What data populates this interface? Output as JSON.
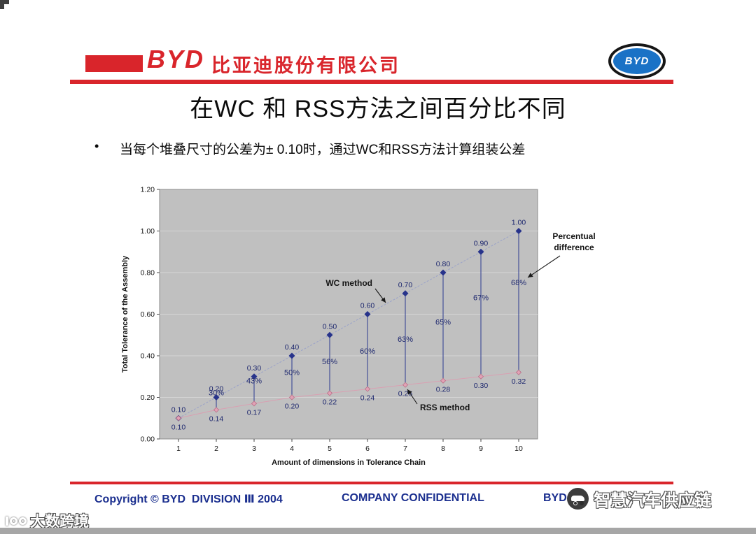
{
  "header": {
    "logo_text": "BYD",
    "company_name": "比亚迪股份有限公司",
    "badge_text": "BYD"
  },
  "title": "在WC 和 RSS方法之间百分比不同",
  "bullet_marker": "•",
  "bullet": "当每个堆叠尺寸的公差为± 0.10时，通过WC和RSS方法计算组装公差",
  "chart_data": {
    "type": "line",
    "x": [
      1,
      2,
      3,
      4,
      5,
      6,
      7,
      8,
      9,
      10
    ],
    "xlabel": "Amount of dimensions in Tolerance Chain",
    "ylabel": "Total Tolerance of the Assembly",
    "ylim": [
      0,
      1.2
    ],
    "ytick_step": 0.2,
    "plot_bg": "#c0c0c0",
    "grid": "horizontal",
    "legend": "none",
    "series": [
      {
        "name": "WC method",
        "color": "#27338b",
        "marker": "diamond",
        "values": [
          0.1,
          0.2,
          0.3,
          0.4,
          0.5,
          0.6,
          0.7,
          0.8,
          0.9,
          1.0
        ],
        "labels": [
          "0.10",
          "0.20",
          "0.30",
          "0.40",
          "0.50",
          "0.60",
          "0.70",
          "0.80",
          "0.90",
          "1.00"
        ]
      },
      {
        "name": "RSS method",
        "color": "#e2a2b5",
        "marker": "diamond",
        "values": [
          0.1,
          0.14,
          0.17,
          0.2,
          0.22,
          0.24,
          0.26,
          0.28,
          0.3,
          0.32
        ],
        "labels": [
          "0.10",
          "0.14",
          "0.17",
          "0.20",
          "0.22",
          "0.24",
          "0.26",
          "0.28",
          "0.30",
          "0.32"
        ]
      }
    ],
    "percent_labels": [
      {
        "n": 2,
        "v": 0.21,
        "text": "30%"
      },
      {
        "n": 3,
        "v": 0.267,
        "text": "43%"
      },
      {
        "n": 4,
        "v": 0.307,
        "text": "50%"
      },
      {
        "n": 5,
        "v": 0.36,
        "text": "56%"
      },
      {
        "n": 6,
        "v": 0.41,
        "text": "60%"
      },
      {
        "n": 7,
        "v": 0.467,
        "text": "63%"
      },
      {
        "n": 8,
        "v": 0.55,
        "text": "65%"
      },
      {
        "n": 9,
        "v": 0.667,
        "text": "67%"
      },
      {
        "n": 10,
        "v": 0.74,
        "text": "68%"
      }
    ],
    "annotations": {
      "wc": "WC method",
      "rss": "RSS method",
      "pct_line1": "Percentual",
      "pct_line2": "difference"
    }
  },
  "footer": {
    "left": "Copyright © BYD  DIVISION Ⅲ 2004",
    "center": "COMPANY CONFIDENTIAL",
    "right": "BYD"
  },
  "watermarks": {
    "bottom_left": "大数跨境",
    "bottom_right": "智慧汽车供应链"
  },
  "colors": {
    "brand_red": "#d9252b",
    "footer_blue": "#1b2f8f",
    "wc_navy": "#27338b",
    "rss_pink": "#e2a2b5",
    "plot_bg": "#c0c0c0"
  }
}
